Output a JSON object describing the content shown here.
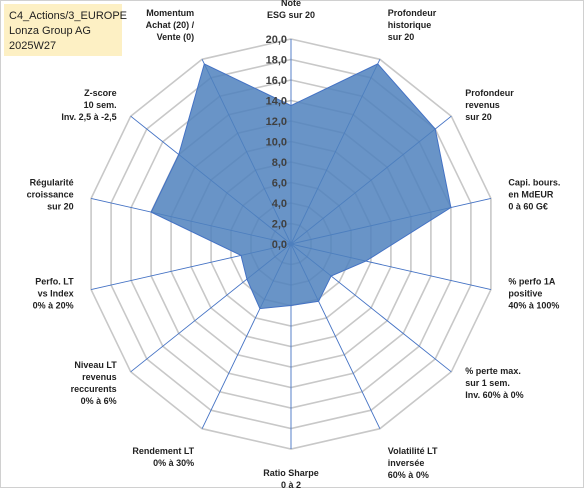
{
  "header": {
    "line1": "C4_Actions/3_EUROPE",
    "line2": "Lonza Group AG",
    "line3": "2025W27"
  },
  "colors": {
    "fill": "#4f81bd",
    "stroke": "#4472c4",
    "grid": "#c8c8c8",
    "spoke": "#4472c4",
    "info_bg": "#fdf0c4"
  },
  "chart_data": {
    "type": "radar",
    "rmin": 0,
    "rmax": 20,
    "tick_step": 2,
    "ticks": [
      "0,0",
      "2,0",
      "4,0",
      "6,0",
      "8,0",
      "10,0",
      "12,0",
      "14,0",
      "16,0",
      "18,0",
      "20,0"
    ],
    "axes": [
      [
        "Note",
        "ESG sur 20"
      ],
      [
        "Profondeur",
        "historique",
        "sur 20"
      ],
      [
        "Profondeur",
        "revenus",
        "sur 20"
      ],
      [
        "Capi. bours.",
        "en MdEUR",
        "0 à 60 G€"
      ],
      [
        "% perfo 1A",
        "positive",
        "40% à 100%"
      ],
      [
        "% perte max.",
        "sur 1 sem.",
        "Inv. 60% à 0%"
      ],
      [
        "Volatilité LT",
        "inversée",
        "60% à 0%"
      ],
      [
        "Ratio Sharpe",
        "0 à 2"
      ],
      [
        "Rendement LT",
        "0% à 30%"
      ],
      [
        "Niveau LT",
        "revenus",
        "reccurents",
        "0% à 6%"
      ],
      [
        "Perfo. LT",
        "vs Index",
        "0% à 20%"
      ],
      [
        "Régularité",
        "croissance",
        "sur 20"
      ],
      [
        "Z-score",
        "10 sem.",
        "Inv. 2,5 à -2,5"
      ],
      [
        "Momentum",
        "Achat (20) /",
        "Vente (0)"
      ]
    ],
    "series": [
      {
        "values": [
          13.5,
          19.5,
          18.0,
          16.0,
          7.5,
          5.0,
          6.2,
          6.0,
          7.0,
          5.5,
          5.0,
          14.0,
          14.0,
          19.5
        ]
      }
    ]
  }
}
